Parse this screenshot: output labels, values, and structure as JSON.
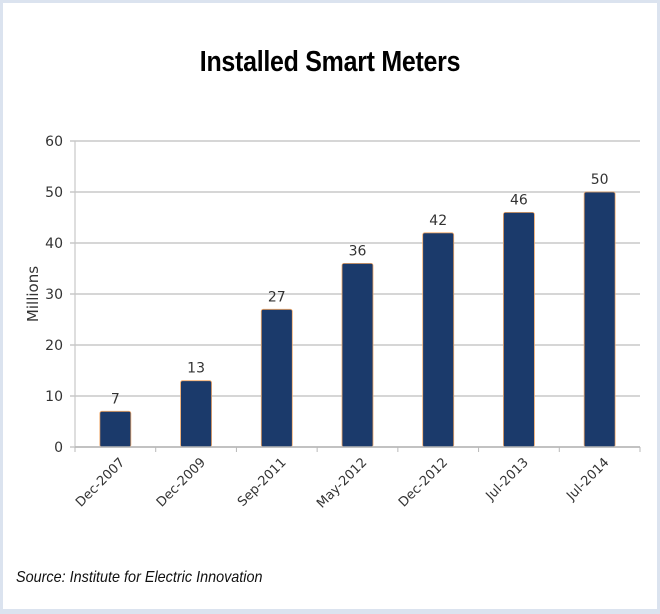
{
  "chart_data": {
    "type": "bar",
    "title": "Installed Smart Meters",
    "xlabel": "",
    "ylabel": "Millions",
    "categories": [
      "Dec-2007",
      "Dec-2009",
      "Sep-2011",
      "May-2012",
      "Dec-2012",
      "Jul-2013",
      "Jul-2014"
    ],
    "values": [
      7,
      13,
      27,
      36,
      42,
      46,
      50
    ],
    "data_labels": [
      "7",
      "13",
      "27",
      "36",
      "42",
      "46",
      "50"
    ],
    "ylim": [
      0,
      60
    ],
    "yticks": [
      0,
      10,
      20,
      30,
      40,
      50,
      60
    ],
    "ytick_labels": [
      "0",
      "10",
      "20",
      "30",
      "40",
      "50",
      "60"
    ],
    "grid": true,
    "legend": "none",
    "bar_color": "#1b3a6b",
    "bar_edge_color": "#f0a868",
    "xtick_rotation_deg": -45
  },
  "source_note": "Source: Institute for Electric Innovation"
}
